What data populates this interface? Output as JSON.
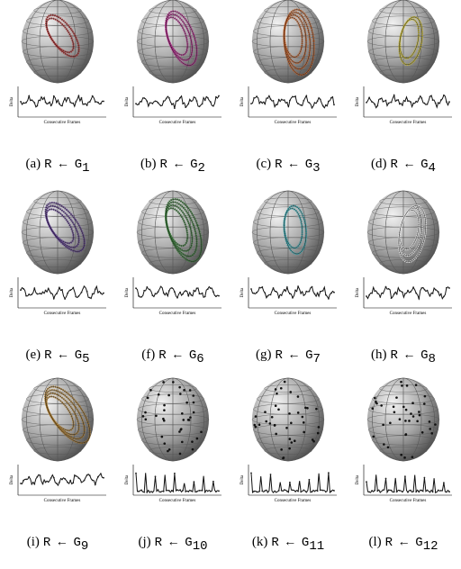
{
  "figure": {
    "y_label": "Delta",
    "x_label": "Consecutive Frames",
    "panels": [
      {
        "label": "(a)",
        "text": "R ← G",
        "sub": "1",
        "color": "#b03030"
      },
      {
        "label": "(b)",
        "text": "R ← G",
        "sub": "2",
        "color": "#b02a8a"
      },
      {
        "label": "(c)",
        "text": "R ← G",
        "sub": "3",
        "color": "#c0602a"
      },
      {
        "label": "(d)",
        "text": "R ← G",
        "sub": "4",
        "color": "#c8b830"
      },
      {
        "label": "(e)",
        "text": "R ← G",
        "sub": "5",
        "color": "#5a3a8a"
      },
      {
        "label": "(f)",
        "text": "R ← G",
        "sub": "6",
        "color": "#3a7a3a"
      },
      {
        "label": "(g)",
        "text": "R ← G",
        "sub": "7",
        "color": "#30a0a8"
      },
      {
        "label": "(h)",
        "text": "R ← G",
        "sub": "8",
        "color": "#e8e8e8"
      },
      {
        "label": "(i)",
        "text": "R ← G",
        "sub": "9",
        "color": "#a87a30"
      },
      {
        "label": "(j)",
        "text": "R ← G",
        "sub": "10",
        "color": "#111111"
      },
      {
        "label": "(k)",
        "text": "R ← G",
        "sub": "11",
        "color": "#111111"
      },
      {
        "label": "(l)",
        "text": "R ← G",
        "sub": "12",
        "color": "#111111"
      }
    ]
  }
}
